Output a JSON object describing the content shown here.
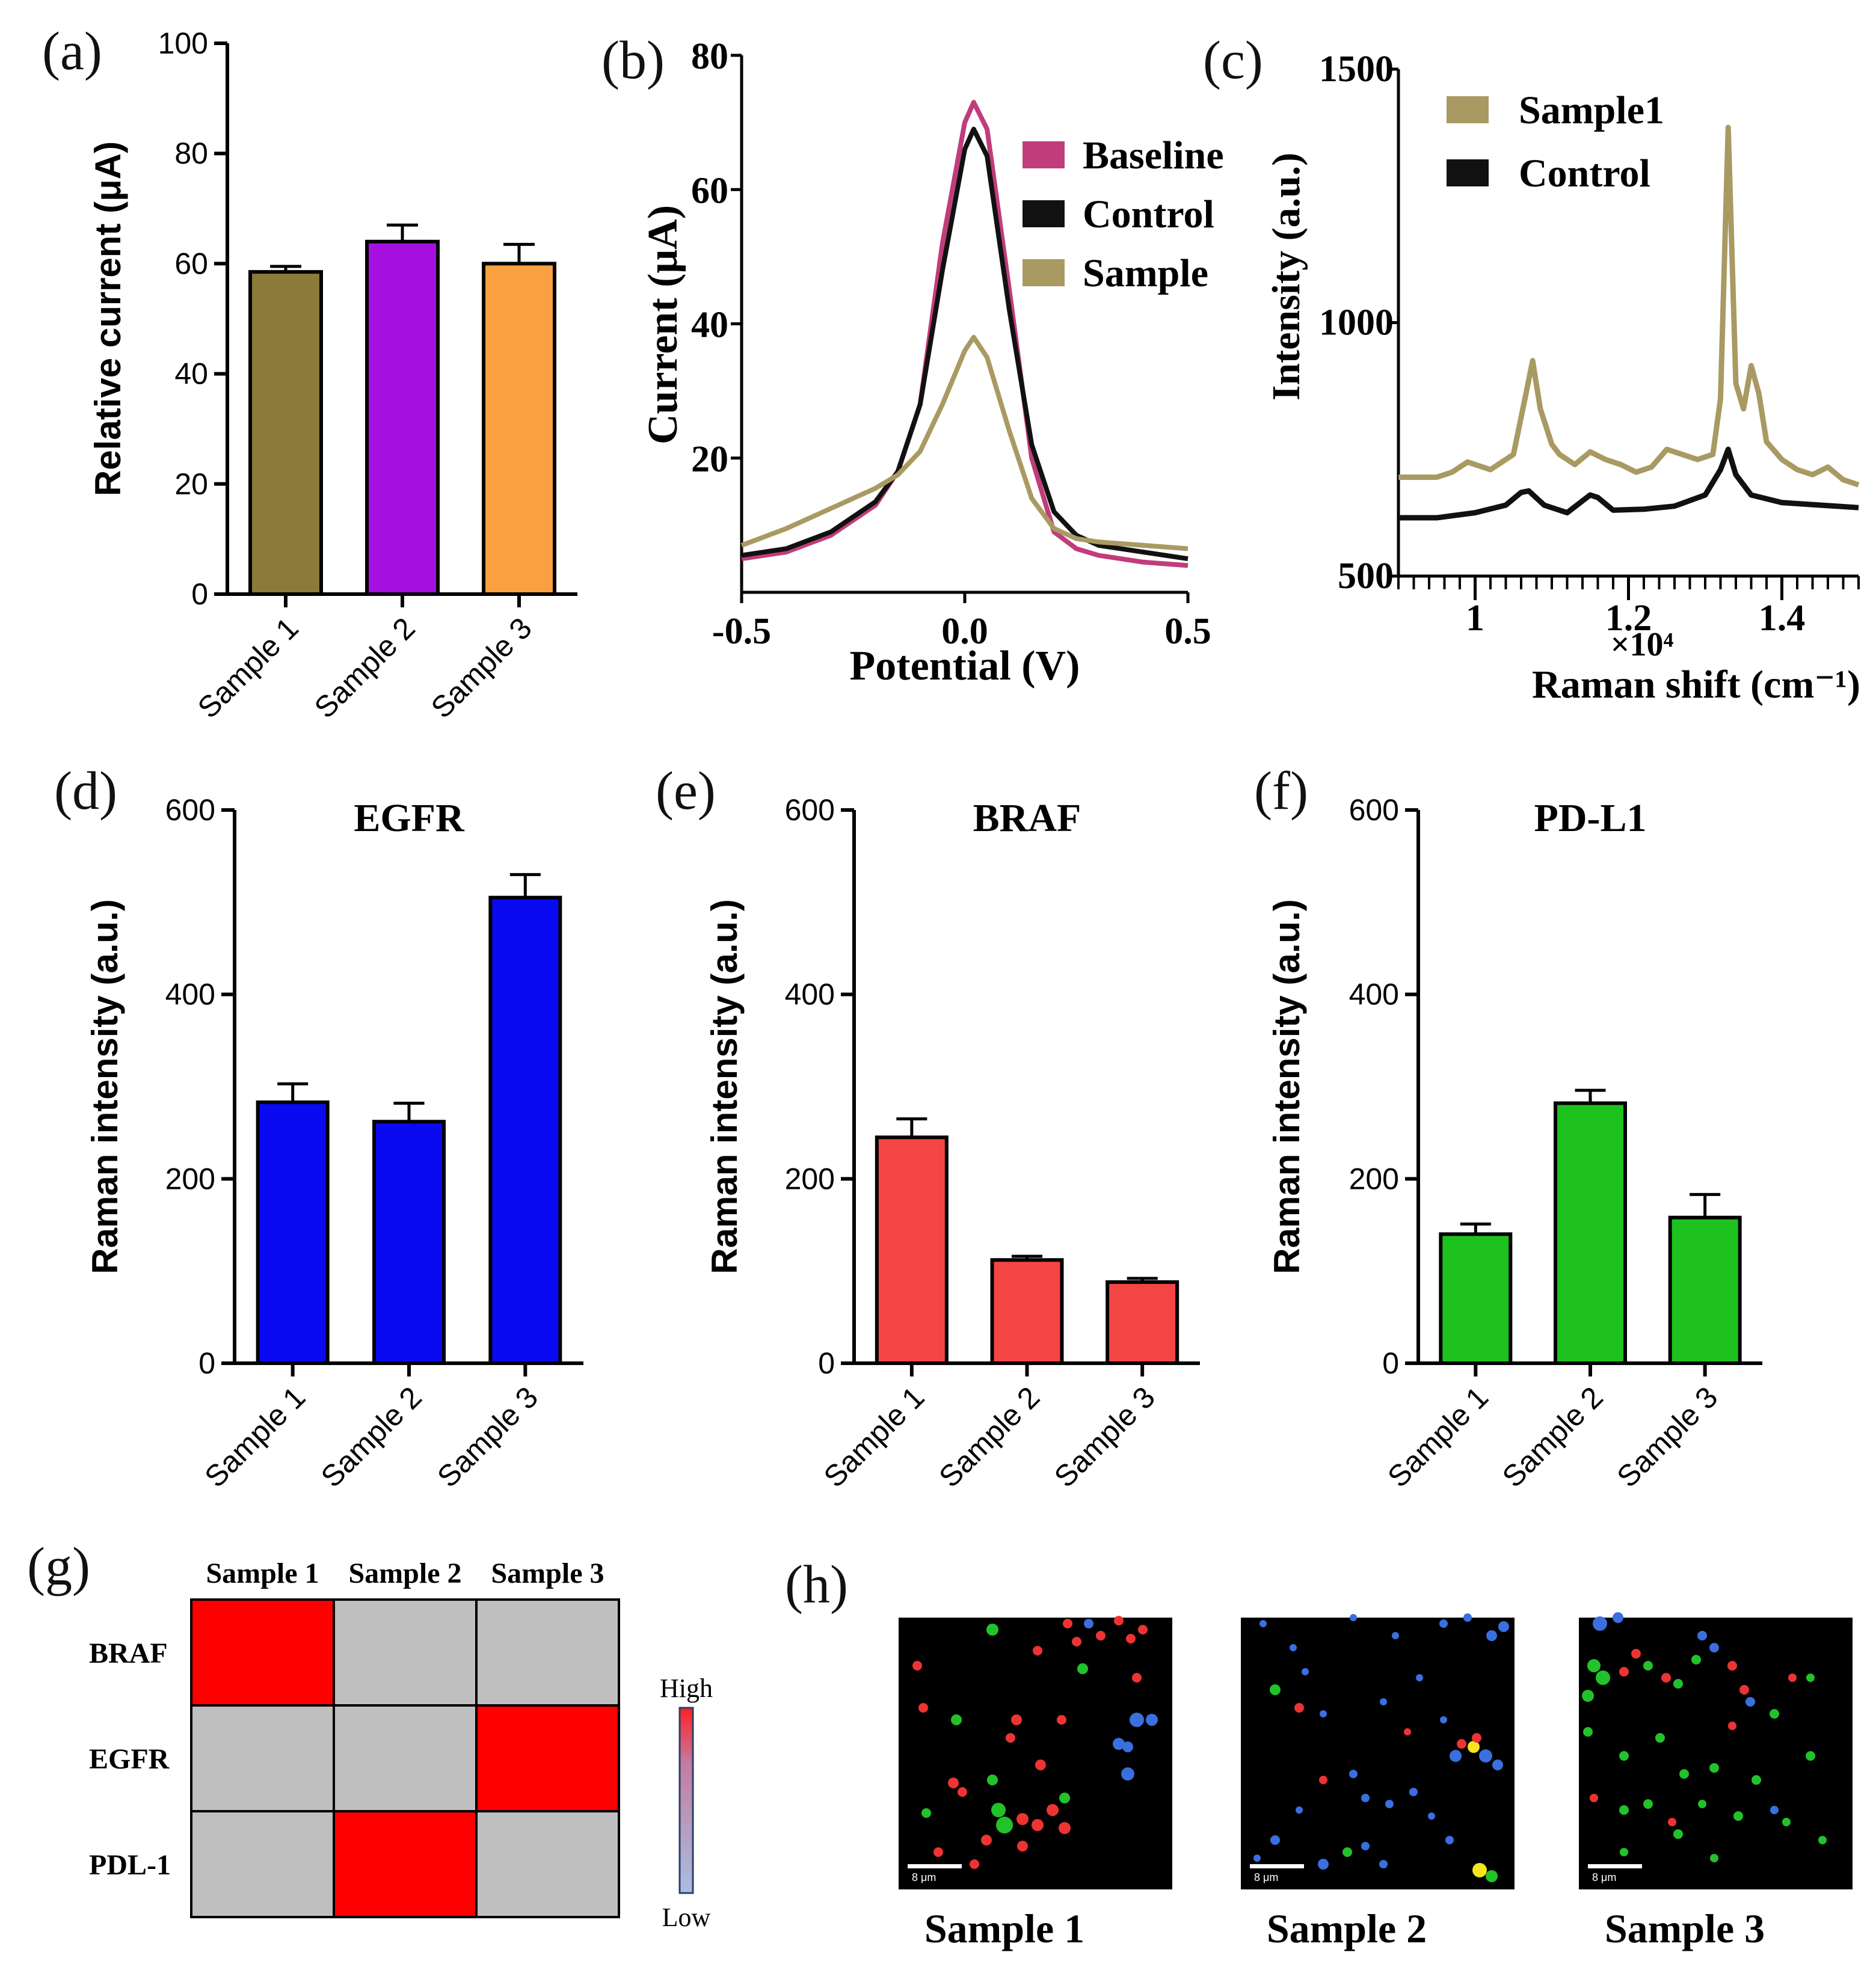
{
  "figure": {
    "panel_labels": [
      "(a)",
      "(b)",
      "(c)",
      "(d)",
      "(e)",
      "(f)",
      "(g)",
      "(h)"
    ]
  },
  "chart_data": [
    {
      "panel": "(a)",
      "type": "bar",
      "title": "",
      "xlabel": "",
      "ylabel": "Relative current (μA)",
      "ylim": [
        0,
        100
      ],
      "yticks": [
        "0",
        "20",
        "40",
        "60",
        "80",
        "100"
      ],
      "categories": [
        "Sample 1",
        "Sample 2",
        "Sample 3"
      ],
      "values": [
        58.5,
        64,
        60
      ],
      "errors": [
        1,
        3,
        3.5
      ],
      "colors": [
        "#8C7A3A",
        "#A50FE0",
        "#F9A040"
      ]
    },
    {
      "panel": "(b)",
      "type": "line",
      "xlabel": "Potential (V)",
      "ylabel": "Current (μA)",
      "xlim": [
        -0.5,
        0.5
      ],
      "ylim": [
        0,
        80
      ],
      "xticks": [
        "-0.5",
        "0.0",
        "0.5"
      ],
      "yticks": [
        "20",
        "40",
        "60",
        "80"
      ],
      "legend": [
        "Baseline",
        "Control",
        "Sample"
      ],
      "legend_position": "top-right",
      "series": [
        {
          "name": "Baseline",
          "color": "#C13C7B",
          "x": [
            -0.5,
            -0.4,
            -0.3,
            -0.2,
            -0.15,
            -0.1,
            -0.05,
            0.0,
            0.02,
            0.05,
            0.1,
            0.15,
            0.2,
            0.25,
            0.3,
            0.4,
            0.5
          ],
          "y": [
            5,
            6,
            8.5,
            13,
            18,
            28,
            52,
            70,
            73,
            69,
            45,
            20,
            9,
            6.5,
            5.5,
            4.5,
            4
          ]
        },
        {
          "name": "Control",
          "color": "#111111",
          "x": [
            -0.5,
            -0.4,
            -0.3,
            -0.2,
            -0.15,
            -0.1,
            -0.05,
            0.0,
            0.02,
            0.05,
            0.1,
            0.15,
            0.2,
            0.25,
            0.3,
            0.4,
            0.5
          ],
          "y": [
            5.5,
            6.5,
            9,
            13.5,
            18,
            28,
            48,
            66,
            69,
            65,
            42,
            22,
            12,
            8.5,
            7,
            6,
            5
          ]
        },
        {
          "name": "Sample",
          "color": "#A89A62",
          "x": [
            -0.5,
            -0.4,
            -0.3,
            -0.2,
            -0.15,
            -0.1,
            -0.05,
            0.0,
            0.02,
            0.05,
            0.1,
            0.15,
            0.2,
            0.25,
            0.3,
            0.4,
            0.5
          ],
          "y": [
            7,
            9.5,
            12.5,
            15.5,
            17.5,
            21,
            28,
            36,
            38,
            35,
            24,
            14,
            9.5,
            8,
            7.5,
            7,
            6.5
          ]
        }
      ]
    },
    {
      "panel": "(c)",
      "type": "line",
      "xlabel": "Raman shift (cm⁻¹)",
      "x_multiplier": "×10⁴",
      "ylabel": "Intensity (a.u.)",
      "xlim": [
        0.9,
        1.5
      ],
      "ylim": [
        500,
        1500
      ],
      "xticks": [
        "1",
        "1.2",
        "1.4"
      ],
      "yticks": [
        "500",
        "1000",
        "1500"
      ],
      "legend": [
        "Sample1",
        "Control"
      ],
      "legend_position": "top-left",
      "series": [
        {
          "name": "Sample1",
          "color": "#A89A62",
          "x": [
            0.9,
            0.95,
            0.97,
            0.99,
            1.02,
            1.05,
            1.065,
            1.075,
            1.085,
            1.1,
            1.11,
            1.13,
            1.15,
            1.17,
            1.19,
            1.21,
            1.23,
            1.25,
            1.27,
            1.29,
            1.31,
            1.32,
            1.33,
            1.34,
            1.35,
            1.36,
            1.37,
            1.38,
            1.4,
            1.42,
            1.44,
            1.46,
            1.48,
            1.5
          ],
          "y": [
            695,
            695,
            705,
            725,
            710,
            740,
            850,
            925,
            830,
            760,
            740,
            720,
            745,
            730,
            720,
            705,
            715,
            750,
            740,
            730,
            740,
            850,
            1385,
            880,
            830,
            915,
            860,
            765,
            730,
            710,
            700,
            715,
            690,
            680
          ]
        },
        {
          "name": "Control",
          "color": "#111111",
          "x": [
            0.9,
            0.95,
            1.0,
            1.04,
            1.06,
            1.07,
            1.09,
            1.12,
            1.15,
            1.16,
            1.18,
            1.22,
            1.26,
            1.3,
            1.32,
            1.33,
            1.34,
            1.36,
            1.4,
            1.45,
            1.5
          ],
          "y": [
            615,
            615,
            625,
            640,
            665,
            668,
            640,
            625,
            660,
            655,
            630,
            632,
            638,
            660,
            710,
            750,
            700,
            660,
            645,
            640,
            635
          ]
        }
      ]
    },
    {
      "panel": "(d)",
      "type": "bar",
      "title": "EGFR",
      "ylabel": "Raman intensity (a.u.)",
      "ylim": [
        0,
        600
      ],
      "yticks": [
        "0",
        "200",
        "400",
        "600"
      ],
      "categories": [
        "Sample 1",
        "Sample 2",
        "Sample 3"
      ],
      "values": [
        283,
        262,
        505
      ],
      "errors": [
        20,
        20,
        25
      ],
      "colors": [
        "#0A0AF0",
        "#0A0AF0",
        "#0A0AF0"
      ]
    },
    {
      "panel": "(e)",
      "type": "bar",
      "title": "BRAF",
      "ylabel": "Raman intensity (a.u.)",
      "ylim": [
        0,
        600
      ],
      "yticks": [
        "0",
        "200",
        "400",
        "600"
      ],
      "categories": [
        "Sample 1",
        "Sample 2",
        "Sample 3"
      ],
      "values": [
        245,
        112,
        88
      ],
      "errors": [
        20,
        4,
        4
      ],
      "colors": [
        "#F44545",
        "#F44545",
        "#F44545"
      ]
    },
    {
      "panel": "(f)",
      "type": "bar",
      "title": "PD-L1",
      "ylabel": "Raman intensity (a.u.)",
      "ylim": [
        0,
        600
      ],
      "yticks": [
        "0",
        "200",
        "400",
        "600"
      ],
      "categories": [
        "Sample 1",
        "Sample 2",
        "Sample 3"
      ],
      "values": [
        140,
        282,
        158
      ],
      "errors": [
        11,
        14,
        25
      ],
      "colors": [
        "#1EC21E",
        "#1EC21E",
        "#1EC21E"
      ]
    },
    {
      "panel": "(g)",
      "type": "heatmap",
      "columns": [
        "Sample 1",
        "Sample 2",
        "Sample 3"
      ],
      "rows": [
        "BRAF",
        "EGFR",
        "PDL-1"
      ],
      "values": [
        [
          1,
          0,
          0
        ],
        [
          0,
          0,
          1
        ],
        [
          0,
          1,
          0
        ]
      ],
      "colorbar_labels": [
        "High",
        "Low"
      ],
      "high_color": "#FF0000",
      "low_color": "#BFBFBF"
    }
  ],
  "images": {
    "panel": "(h)",
    "items": [
      {
        "caption": "Sample 1",
        "scale_bar": "8 μm"
      },
      {
        "caption": "Sample 2",
        "scale_bar": "8 μm"
      },
      {
        "caption": "Sample 3",
        "scale_bar": "8 μm"
      }
    ]
  }
}
